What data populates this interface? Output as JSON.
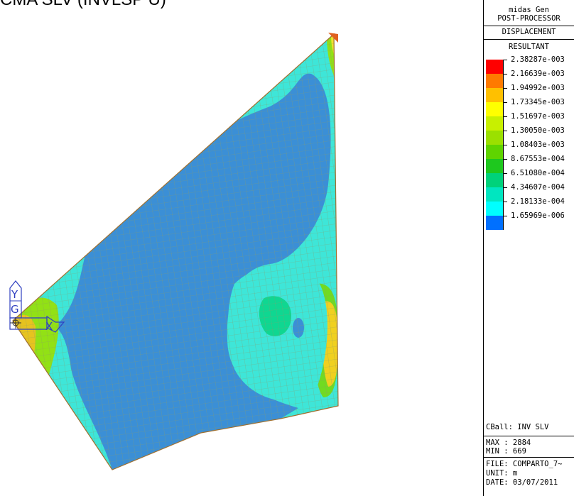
{
  "title_partial": "CMA SLV (INVLSP U)",
  "legend": {
    "program": "midas Gen",
    "mode": "POST-PROCESSOR",
    "result_type": "DISPLACEMENT",
    "component": "RESULTANT",
    "scale": [
      {
        "value": "2.38287e-003",
        "color": "#ff0000"
      },
      {
        "value": "2.16639e-003",
        "color": "#ff7a00"
      },
      {
        "value": "1.94992e-003",
        "color": "#ffc000"
      },
      {
        "value": "1.73345e-003",
        "color": "#ffff00"
      },
      {
        "value": "1.51697e-003",
        "color": "#c8f000"
      },
      {
        "value": "1.30050e-003",
        "color": "#9be000"
      },
      {
        "value": "1.08403e-003",
        "color": "#5fd400"
      },
      {
        "value": "8.67553e-004",
        "color": "#1ec81e"
      },
      {
        "value": "6.51080e-004",
        "color": "#00d27a"
      },
      {
        "value": "4.34607e-004",
        "color": "#00e6c0"
      },
      {
        "value": "2.18133e-004",
        "color": "#00ffff"
      },
      {
        "value": "1.65969e-006",
        "color": "#0070ff"
      }
    ],
    "load_case": "CBall: INV SLV",
    "max": "MAX : 2884",
    "min": "MIN : 669",
    "file": "FILE: COMPARTO_7~",
    "unit": "UNIT: m",
    "date": "DATE: 03/07/2011"
  },
  "axis": {
    "y": "Y",
    "g": "G",
    "x": "X"
  },
  "colors": {
    "mesh_fill": "#3b8fd6",
    "mesh_line": "#9a9a6e",
    "edge_cyan": "#40e8d8",
    "hot": "#f0d020"
  }
}
